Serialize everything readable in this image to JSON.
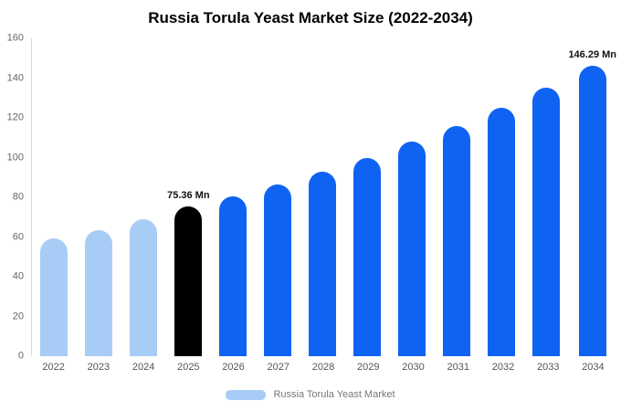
{
  "title": "Russia Torula Yeast Market Size (2022-2034)",
  "legend": {
    "label": "Russia Torula Yeast Market",
    "swatch_color": "#a7cdf6"
  },
  "colors": {
    "light_blue": "#a7cdf6",
    "blue": "#0f63f2",
    "black": "#000000",
    "axis_line": "#d9d9d9"
  },
  "chart_data": {
    "type": "bar",
    "title": "Russia Torula Yeast Market Size (2022-2034)",
    "categories": [
      "2022",
      "2023",
      "2024",
      "2025",
      "2026",
      "2027",
      "2028",
      "2029",
      "2030",
      "2031",
      "2032",
      "2033",
      "2034"
    ],
    "values": [
      59.5,
      63.5,
      69,
      75.36,
      80.5,
      86.5,
      93,
      100,
      108,
      116,
      125,
      135,
      146.29
    ],
    "bar_colors": [
      "#a7cdf6",
      "#a7cdf6",
      "#a7cdf6",
      "#000000",
      "#0f63f2",
      "#0f63f2",
      "#0f63f2",
      "#0f63f2",
      "#0f63f2",
      "#0f63f2",
      "#0f63f2",
      "#0f63f2",
      "#0f63f2"
    ],
    "annotations": [
      {
        "index": 3,
        "text": "75.36 Mn"
      },
      {
        "index": 12,
        "text": "146.29 Mn"
      }
    ],
    "xlabel": "",
    "ylabel": "",
    "ylim": [
      0,
      160
    ],
    "yticks": [
      0,
      20,
      40,
      60,
      80,
      100,
      120,
      140,
      160
    ],
    "grid": false,
    "legend_position": "bottom",
    "legend_entries": [
      "Russia Torula Yeast Market"
    ]
  }
}
